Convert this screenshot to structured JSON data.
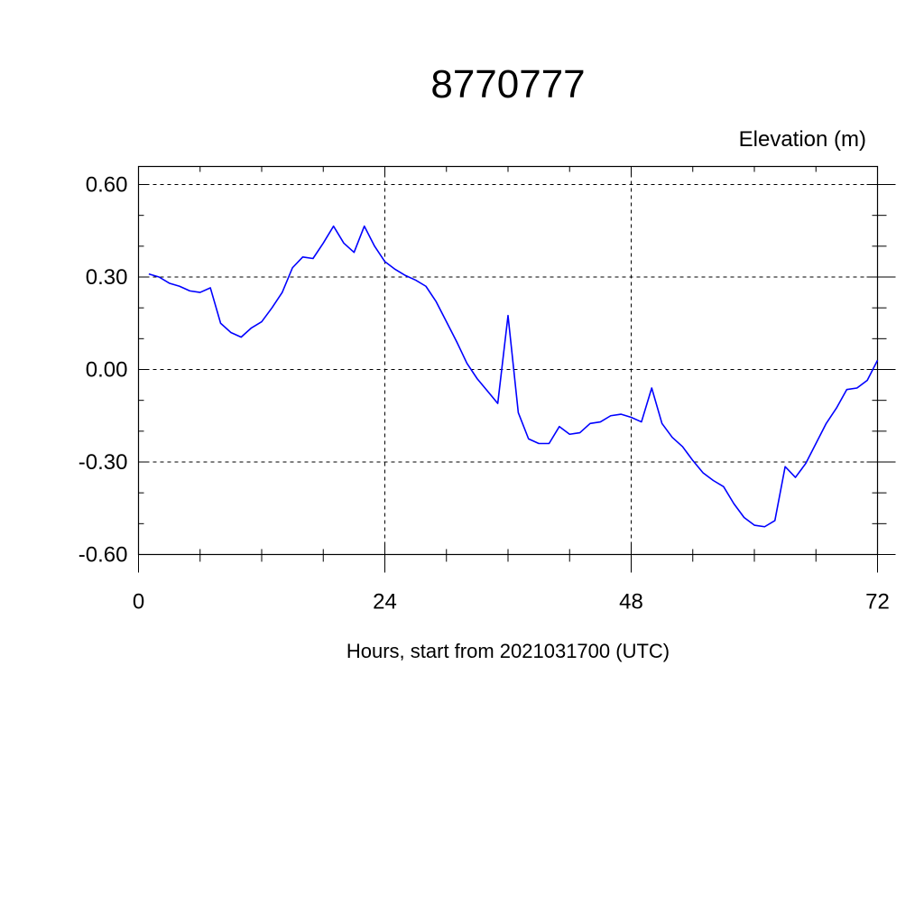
{
  "chart_data": {
    "type": "line",
    "title": "8770777",
    "ylabel": "Elevation (m)",
    "xlabel": "Hours, start from 2021031700 (UTC)",
    "xlim": [
      0,
      72
    ],
    "ylim": [
      -0.6,
      0.6
    ],
    "xticks": [
      0,
      24,
      48,
      72
    ],
    "xtick_labels": [
      "0",
      "24",
      "48",
      "72"
    ],
    "yticks": [
      -0.6,
      -0.3,
      0.0,
      0.3,
      0.6
    ],
    "ytick_labels": [
      "-0.60",
      "-0.30",
      "0.00",
      "0.30",
      "0.60"
    ],
    "grid": true,
    "series": [
      {
        "color": "#0000ff",
        "x": [
          1,
          2,
          3,
          4,
          5,
          6,
          7,
          8,
          9,
          10,
          11,
          12,
          13,
          14,
          15,
          16,
          17,
          18,
          19,
          20,
          21,
          22,
          23,
          24,
          25,
          26,
          27,
          28,
          29,
          30,
          31,
          32,
          33,
          34,
          35,
          36,
          37,
          38,
          39,
          40,
          41,
          42,
          43,
          44,
          45,
          46,
          47,
          48,
          49,
          50,
          51,
          52,
          53,
          54,
          55,
          56,
          57,
          58,
          59,
          60,
          61,
          62,
          63,
          64,
          65,
          66,
          67,
          68,
          69,
          70,
          71,
          72
        ],
        "values": [
          0.31,
          0.3,
          0.28,
          0.27,
          0.255,
          0.25,
          0.265,
          0.15,
          0.12,
          0.105,
          0.135,
          0.155,
          0.2,
          0.25,
          0.33,
          0.365,
          0.36,
          0.41,
          0.465,
          0.41,
          0.38,
          0.465,
          0.4,
          0.35,
          0.325,
          0.305,
          0.29,
          0.27,
          0.22,
          0.155,
          0.09,
          0.02,
          -0.03,
          -0.07,
          -0.11,
          0.175,
          -0.14,
          -0.225,
          -0.24,
          -0.24,
          -0.185,
          -0.21,
          -0.205,
          -0.175,
          -0.17,
          -0.15,
          -0.145,
          -0.155,
          -0.17,
          -0.06,
          -0.175,
          -0.22,
          -0.25,
          -0.295,
          -0.335,
          -0.36,
          -0.38,
          -0.435,
          -0.48,
          -0.505,
          -0.51,
          -0.49,
          -0.315,
          -0.35,
          -0.305,
          -0.24,
          -0.175,
          -0.125,
          -0.065,
          -0.06,
          -0.035,
          0.03
        ]
      }
    ]
  }
}
